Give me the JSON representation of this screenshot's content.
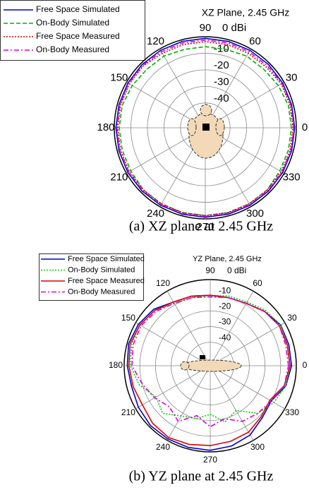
{
  "chart_data": [
    {
      "type": "polar",
      "title": "XZ Plane, 2.45 GHz",
      "caption": "(a) XZ plane at 2.45 GHz",
      "theta": [
        0,
        15,
        30,
        45,
        60,
        75,
        90,
        105,
        120,
        135,
        150,
        165,
        180,
        195,
        210,
        225,
        240,
        255,
        270,
        285,
        300,
        315,
        330,
        345
      ],
      "rlim": [
        -55,
        0
      ],
      "rticks": [
        {
          "value": 0,
          "label": "0 dBi"
        },
        -10,
        -20,
        -30,
        -40
      ],
      "thetaticks": [
        0,
        30,
        60,
        90,
        120,
        150,
        180,
        210,
        240,
        270,
        300,
        330
      ],
      "series": [
        {
          "name": "Free Space Simulated",
          "color": "#0000cc",
          "line_style": "solid",
          "values": [
            -1,
            -1,
            -1,
            -1,
            -1,
            -1,
            -1,
            -1,
            -1,
            -1,
            -1,
            -1,
            -1,
            -1,
            -1,
            -1,
            -1,
            -1,
            -1,
            -1,
            -1,
            -1,
            -1,
            -1
          ]
        },
        {
          "name": "On-Body Simulated",
          "color": "#00b000",
          "line_style": "dashed",
          "values": [
            -3,
            -3,
            -4,
            -5,
            -5,
            -6,
            -6,
            -6,
            -5,
            -5,
            -4,
            -3,
            -3,
            -3,
            -3,
            -2,
            -2,
            -2,
            -2,
            -2,
            -2,
            -2,
            -3,
            -3
          ]
        },
        {
          "name": "Free Space Measured",
          "color": "#cc0000",
          "line_style": "dotted",
          "values": [
            -2,
            -2,
            -2,
            -3,
            -3,
            -3,
            -3,
            -3,
            -3,
            -2,
            -2,
            -2,
            -2,
            -2,
            -2,
            -2,
            -2,
            -2,
            -2,
            -2,
            -2,
            -2,
            -2,
            -2
          ]
        },
        {
          "name": "On-Body Measured",
          "color": "#dd00dd",
          "line_style": "dashdot",
          "values": [
            -1.5,
            -1.5,
            -1.5,
            -2,
            -2,
            -2,
            -2,
            -2,
            -2,
            -1.5,
            -1.5,
            -1.5,
            -1.5,
            -1.5,
            -1.5,
            -1.5,
            -1.5,
            -1.5,
            -1.5,
            -1.5,
            -1.5,
            -1.5,
            -1.5,
            -1.5
          ]
        }
      ]
    },
    {
      "type": "polar",
      "title": "YZ Plane, 2.45 GHz",
      "caption": "(b) YZ plane at 2.45 GHz",
      "theta": [
        0,
        15,
        30,
        45,
        60,
        75,
        90,
        105,
        120,
        135,
        150,
        165,
        180,
        195,
        210,
        225,
        240,
        255,
        270,
        285,
        300,
        315,
        330,
        345
      ],
      "rlim": [
        -55,
        0
      ],
      "rticks": [
        {
          "value": 0,
          "label": "0 dBi"
        },
        -10,
        -20,
        -30,
        -40
      ],
      "thetaticks": [
        0,
        30,
        60,
        90,
        120,
        150,
        180,
        210,
        240,
        270,
        300,
        330
      ],
      "series": [
        {
          "name": "Free Space Simulated",
          "color": "#0000cc",
          "line_style": "solid",
          "values": [
            -3,
            -3,
            -3,
            -6,
            -9,
            -10,
            -10,
            -9,
            -8,
            -4,
            -2,
            -1,
            -2,
            -3,
            -2,
            -1,
            -1,
            -1,
            -1,
            -2,
            -4,
            -8,
            -10,
            -5
          ]
        },
        {
          "name": "On-Body Simulated",
          "color": "#00cc00",
          "line_style": "dotted",
          "values": [
            -4,
            -4,
            -3,
            -5,
            -8,
            -9,
            -10,
            -10,
            -9,
            -5,
            -3,
            -3,
            -4,
            -8,
            -15,
            -12,
            -18,
            -20,
            -24,
            -18,
            -22,
            -12,
            -8,
            -5
          ]
        },
        {
          "name": "Free Space Measured",
          "color": "#dd0000",
          "line_style": "solid",
          "values": [
            -4,
            -4,
            -4,
            -6,
            -9,
            -10,
            -10,
            -9,
            -8,
            -5,
            -3,
            -2,
            -3,
            -4,
            -5,
            -3,
            -2,
            -3,
            -4,
            -5,
            -6,
            -9,
            -11,
            -6
          ]
        },
        {
          "name": "On-Body Measured",
          "color": "#dd00dd",
          "line_style": "dashdot",
          "values": [
            -5,
            -5,
            -4,
            -6,
            -9,
            -10,
            -11,
            -10,
            -9,
            -6,
            -4,
            -4,
            -5,
            -10,
            -14,
            -18,
            -14,
            -22,
            -16,
            -20,
            -14,
            -12,
            -10,
            -6
          ]
        }
      ]
    }
  ]
}
